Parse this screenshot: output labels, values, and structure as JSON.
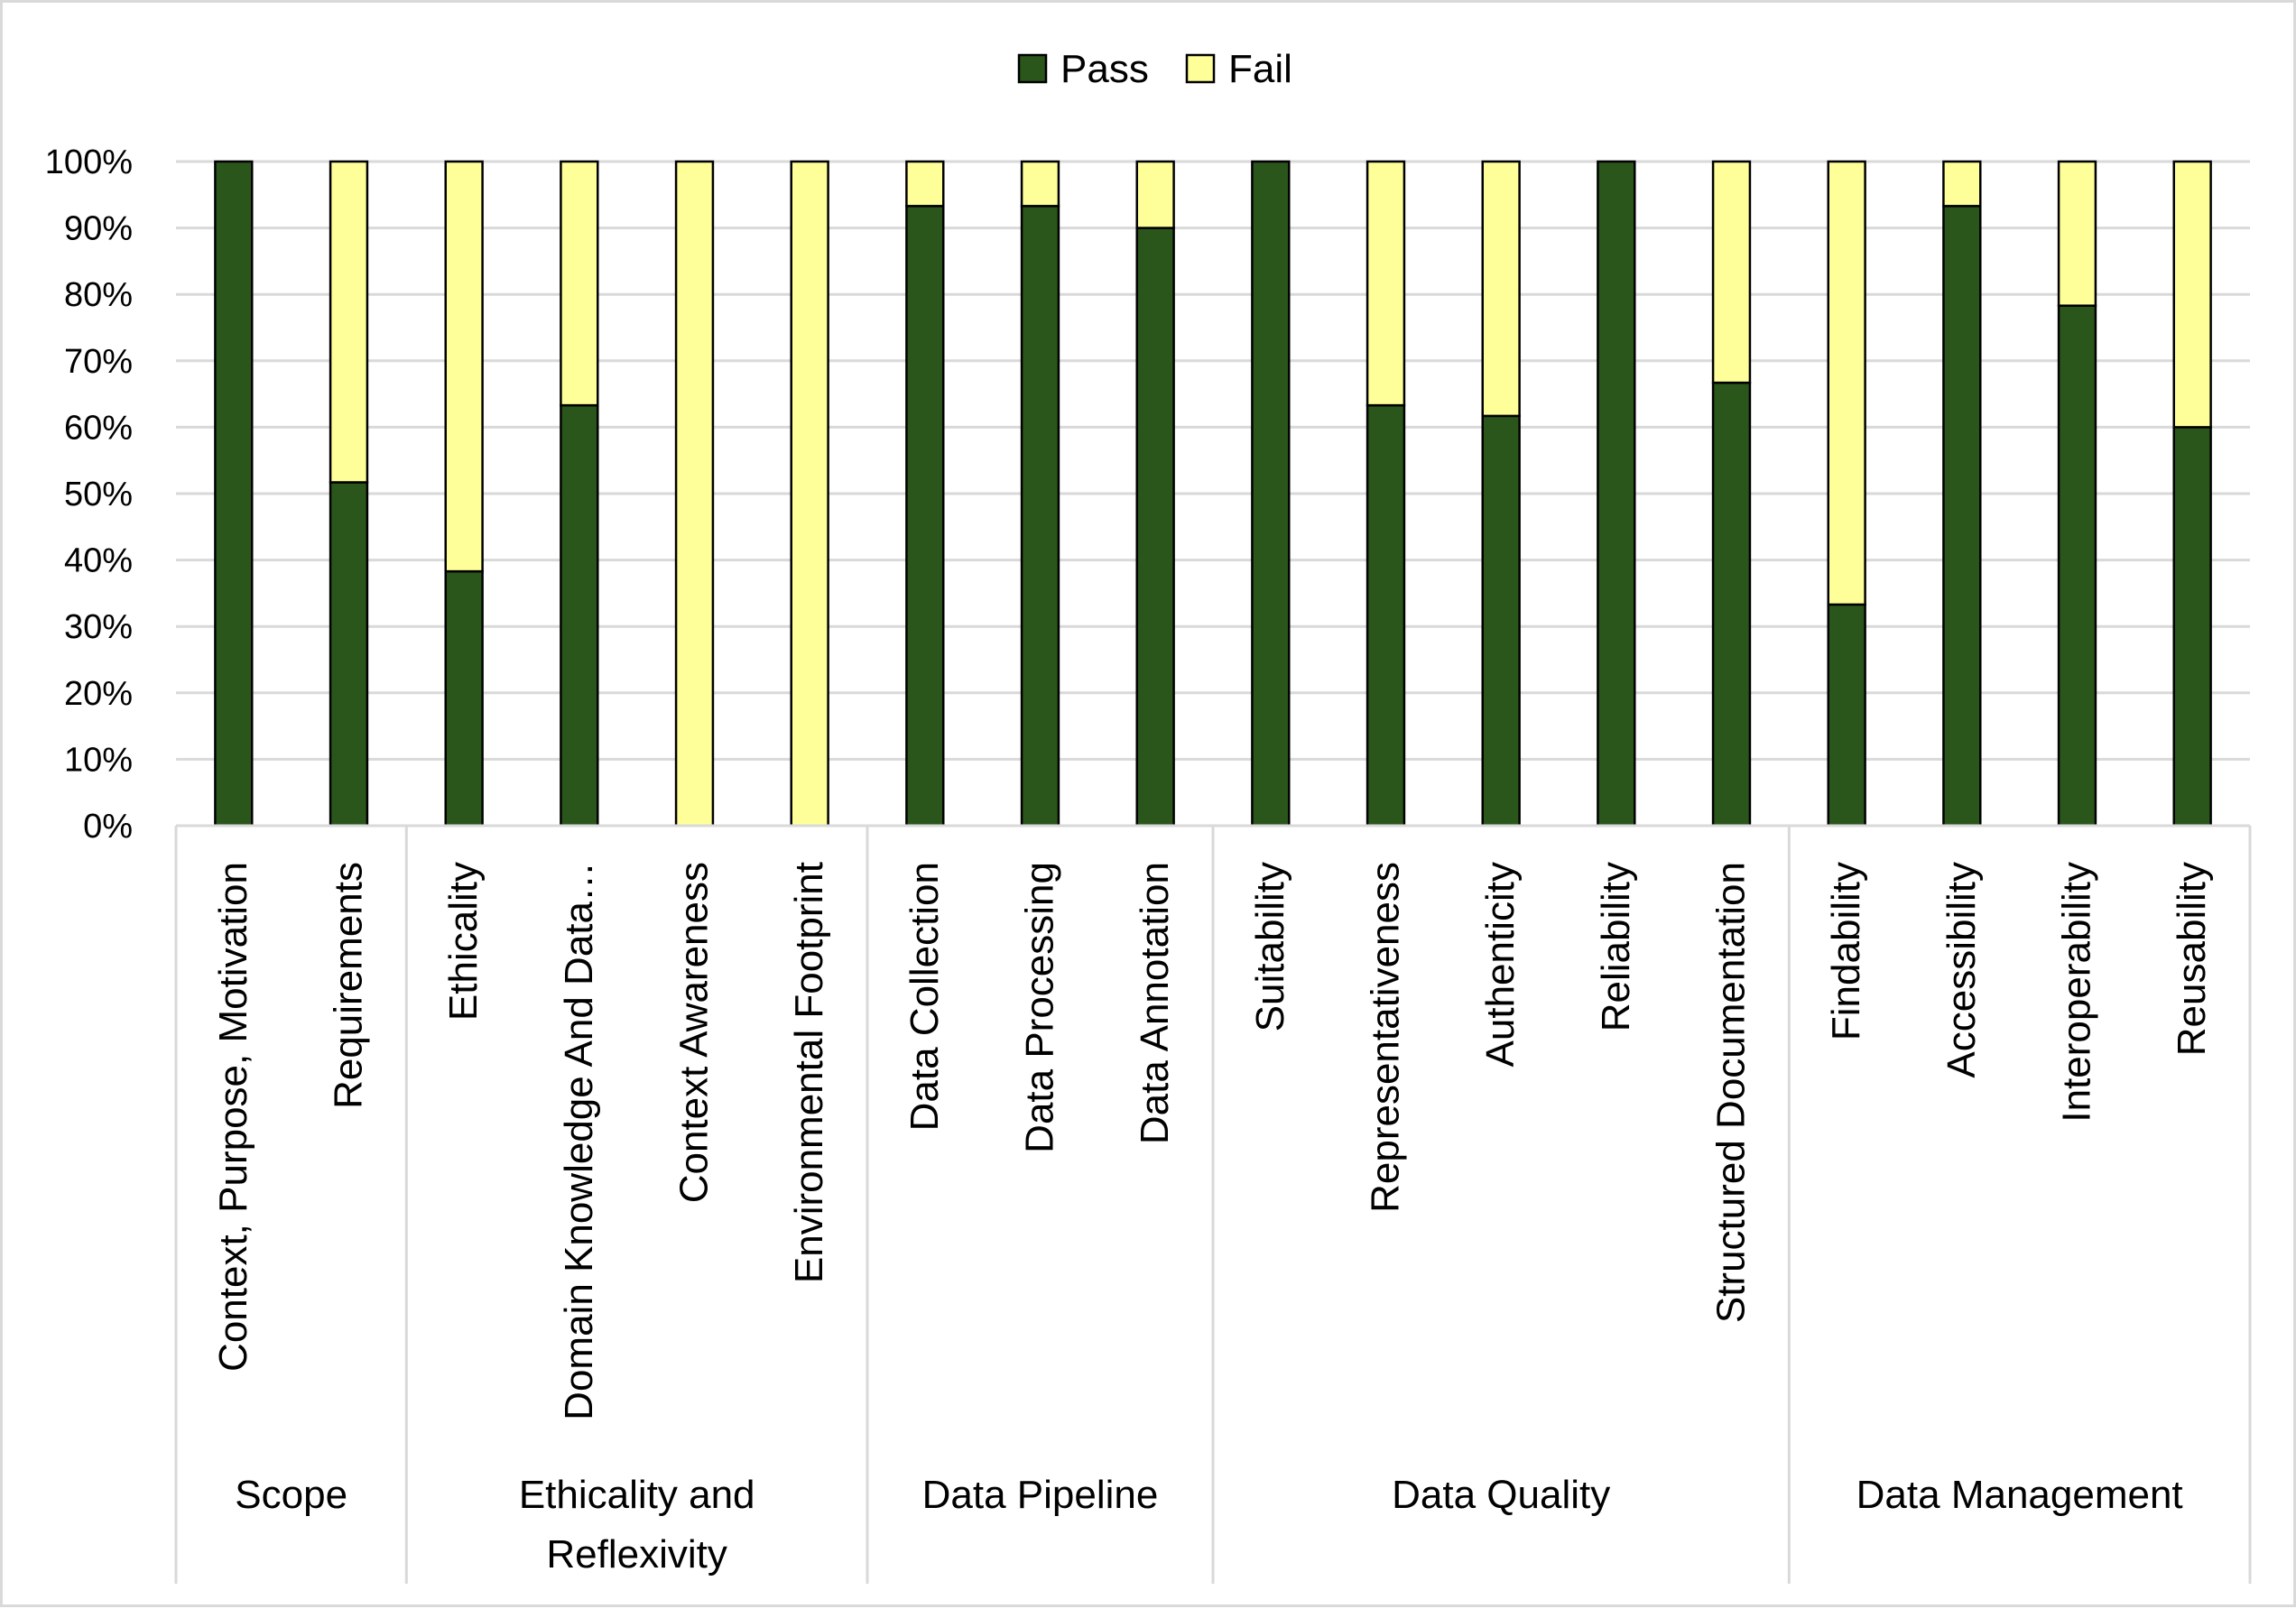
{
  "chart_data": {
    "type": "bar",
    "stacked": true,
    "percent": true,
    "title": "",
    "xlabel": "",
    "ylabel": "",
    "ylim": [
      0,
      100
    ],
    "yticks": [
      "0%",
      "10%",
      "20%",
      "30%",
      "40%",
      "50%",
      "60%",
      "70%",
      "80%",
      "90%",
      "100%"
    ],
    "grid": true,
    "legend_position": "top",
    "categories": [
      "Context, Purpose, Motivation",
      "Requirements",
      "Ethicality",
      "Domain Knowledge And Data…",
      "Context Awareness",
      "Environmental Footprint",
      "Data Collection",
      "Data Processing",
      "Data Annotation",
      "Suitability",
      "Representativeness",
      "Authenticity",
      "Reliability",
      "Structured Documentation",
      "Findability",
      "Accessibility",
      "Interoperability",
      "Reusability"
    ],
    "groups": [
      {
        "label_lines": [
          "Scope"
        ],
        "count": 2
      },
      {
        "label_lines": [
          "Ethicality and",
          "Reflexivity"
        ],
        "count": 4
      },
      {
        "label_lines": [
          "Data Pipeline"
        ],
        "count": 3
      },
      {
        "label_lines": [
          "Data Quality"
        ],
        "count": 5
      },
      {
        "label_lines": [
          "Data Management"
        ],
        "count": 4
      }
    ],
    "series": [
      {
        "name": "Pass",
        "color": "#2a561c",
        "values": [
          100,
          51.7,
          38.3,
          63.3,
          0,
          0,
          93.3,
          93.3,
          90,
          100,
          63.3,
          61.7,
          100,
          66.7,
          33.3,
          93.3,
          78.3,
          60
        ]
      },
      {
        "name": "Fail",
        "color": "#ffff99",
        "values": [
          0,
          48.3,
          61.7,
          36.7,
          100,
          100,
          6.7,
          6.7,
          10,
          0,
          36.7,
          38.3,
          0,
          33.3,
          66.7,
          6.7,
          21.7,
          40
        ]
      }
    ]
  }
}
